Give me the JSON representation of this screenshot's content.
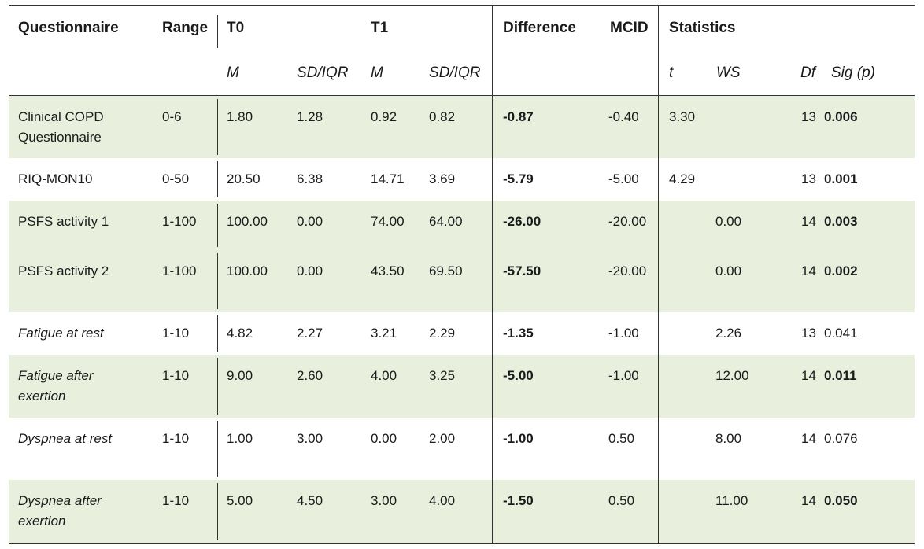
{
  "header": {
    "questionnaire": "Questionnaire",
    "range": "Range",
    "t0": "T0",
    "t1": "T1",
    "difference": "Difference",
    "mcid": "MCID",
    "statistics": "Statistics"
  },
  "subheader": {
    "t0_m": "M",
    "t0_sd": "SD/IQR",
    "t1_m": "M",
    "t1_sd": "SD/IQR",
    "t": "t",
    "ws": "WS",
    "df": "Df",
    "sig": "Sig (p)"
  },
  "rows": [
    {
      "name": "Clinical COPD Questionnaire",
      "range": "0-6",
      "t0_m": "1.80",
      "t0_sd": "1.28",
      "t1_m": "0.92",
      "t1_sd": "0.82",
      "diff": "-0.87",
      "mcid": "-0.40",
      "t": "3.30",
      "ws": "",
      "df": "13",
      "sig": "0.006",
      "sig_bold": true,
      "italic_name": false,
      "shaded": true
    },
    {
      "name": "RIQ-MON10",
      "range": "0-50",
      "t0_m": "20.50",
      "t0_sd": "6.38",
      "t1_m": "14.71",
      "t1_sd": "3.69",
      "diff": "-5.79",
      "mcid": "-5.00",
      "t": "4.29",
      "ws": "",
      "df": "13",
      "sig": "0.001",
      "sig_bold": true,
      "italic_name": false,
      "shaded": false
    },
    {
      "name": "PSFS activity 1",
      "range": "1-100",
      "t0_m": "100.00",
      "t0_sd": "0.00",
      "t1_m": "74.00",
      "t1_sd": "64.00",
      "diff": "-26.00",
      "mcid": "-20.00",
      "t": "",
      "ws": "0.00",
      "df": "14",
      "sig": "0.003",
      "sig_bold": true,
      "italic_name": false,
      "shaded": true
    },
    {
      "name": "PSFS  activity 2",
      "range": "1-100",
      "t0_m": "100.00",
      "t0_sd": "0.00",
      "t1_m": "43.50",
      "t1_sd": "69.50",
      "diff": "-57.50",
      "mcid": "-20.00",
      "t": "",
      "ws": "0.00",
      "df": "14",
      "sig": "0.002",
      "sig_bold": true,
      "italic_name": false,
      "shaded": true
    },
    {
      "name": "Fatigue at rest",
      "range": "1-10",
      "t0_m": "4.82",
      "t0_sd": "2.27",
      "t1_m": "3.21",
      "t1_sd": "2.29",
      "diff": "-1.35",
      "mcid": "-1.00",
      "t": "",
      "ws": "2.26",
      "df": "13",
      "sig": "0.041",
      "sig_bold": false,
      "italic_name": true,
      "shaded": false
    },
    {
      "name": "Fatigue after exertion",
      "range": "1-10",
      "t0_m": "9.00",
      "t0_sd": "2.60",
      "t1_m": "4.00",
      "t1_sd": "3.25",
      "diff": "-5.00",
      "mcid": "-1.00",
      "t": "",
      "ws": "12.00",
      "df": "14",
      "sig": "0.011",
      "sig_bold": true,
      "italic_name": true,
      "shaded": true
    },
    {
      "name": "Dyspnea at rest",
      "range": "1-10",
      "t0_m": "1.00",
      "t0_sd": "3.00",
      "t1_m": "0.00",
      "t1_sd": "2.00",
      "diff": "-1.00",
      "mcid": "0.50",
      "t": "",
      "ws": "8.00",
      "df": "14",
      "sig": "0.076",
      "sig_bold": false,
      "italic_name": true,
      "shaded": false
    },
    {
      "name": "Dyspnea after exertion",
      "range": "1-10",
      "t0_m": "5.00",
      "t0_sd": "4.50",
      "t1_m": "3.00",
      "t1_sd": "4.00",
      "diff": "-1.50",
      "mcid": "0.50",
      "t": "",
      "ws": "11.00",
      "df": "14",
      "sig": "0.050",
      "sig_bold": true,
      "italic_name": true,
      "shaded": true
    }
  ]
}
